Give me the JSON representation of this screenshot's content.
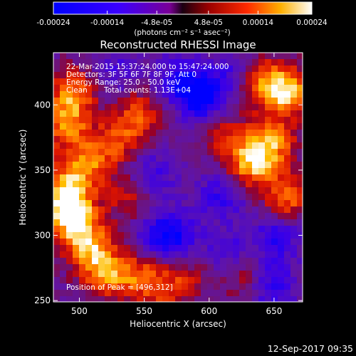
{
  "chart_data": {
    "type": "heatmap",
    "title": "Reconstructed RHESSI Image",
    "xlabel": "Heliocentric X (arcsec)",
    "ylabel": "Heliocentric Y (arcsec)",
    "xlim": [
      480,
      672
    ],
    "ylim": [
      249,
      440
    ],
    "x_ticks": [
      500,
      550,
      600,
      650
    ],
    "y_ticks": [
      250,
      300,
      350,
      400
    ],
    "colorbar": {
      "range": [
        -0.00024,
        0.00024
      ],
      "tick_labels": [
        "-0.00024",
        "-0.00014",
        "-4.8e-05",
        "4.8e-05",
        "0.00014",
        "0.00024"
      ],
      "tick_values": [
        -0.00024,
        -0.00014,
        -4.8e-05,
        4.8e-05,
        0.00014,
        0.00024
      ],
      "units": "(photons cm⁻² s⁻¹ asec⁻²)"
    },
    "annotations": {
      "time": "22-Mar-2015 15:37:24.000 to 15:47:24.000",
      "detectors": "Detectors: 3F 5F 6F 7F 8F 9F, Att 0",
      "energy": "Energy Range: 25.0 - 50.0 keV",
      "method": "Clean",
      "counts": "Total counts: 1.13E+04",
      "peak": "Position of Peak = [496,312]"
    },
    "bright_regions": [
      {
        "x": 496,
        "y": 312,
        "v": 0.00024
      },
      {
        "x": 488,
        "y": 330,
        "v": 0.0002
      },
      {
        "x": 508,
        "y": 290,
        "v": 0.00018
      },
      {
        "x": 520,
        "y": 270,
        "v": 0.00017
      },
      {
        "x": 500,
        "y": 350,
        "v": 0.00016
      },
      {
        "x": 490,
        "y": 385,
        "v": 0.00018
      },
      {
        "x": 495,
        "y": 410,
        "v": 0.00017
      },
      {
        "x": 520,
        "y": 365,
        "v": 0.00012
      },
      {
        "x": 538,
        "y": 380,
        "v": 0.00011
      },
      {
        "x": 548,
        "y": 398,
        "v": 0.0001
      },
      {
        "x": 540,
        "y": 330,
        "v": 0.00012
      },
      {
        "x": 545,
        "y": 270,
        "v": 0.00013
      },
      {
        "x": 562,
        "y": 258,
        "v": 0.0001
      },
      {
        "x": 582,
        "y": 268,
        "v": 9e-05
      },
      {
        "x": 660,
        "y": 410,
        "v": 0.00023
      },
      {
        "x": 640,
        "y": 418,
        "v": 0.00016
      },
      {
        "x": 632,
        "y": 355,
        "v": 0.00022
      },
      {
        "x": 648,
        "y": 372,
        "v": 0.00019
      },
      {
        "x": 660,
        "y": 330,
        "v": 0.00018
      },
      {
        "x": 625,
        "y": 270,
        "v": 0.00011
      },
      {
        "x": 610,
        "y": 380,
        "v": 0.00011
      }
    ],
    "dark_regions": [
      {
        "x": 596,
        "y": 404,
        "v": -0.00022
      },
      {
        "x": 578,
        "y": 420,
        "v": -0.00016
      },
      {
        "x": 575,
        "y": 300,
        "v": -0.00014
      },
      {
        "x": 555,
        "y": 345,
        "v": -0.00013
      },
      {
        "x": 610,
        "y": 330,
        "v": -0.00013
      },
      {
        "x": 615,
        "y": 285,
        "v": -0.00012
      },
      {
        "x": 652,
        "y": 298,
        "v": -0.00014
      },
      {
        "x": 648,
        "y": 262,
        "v": -0.00014
      },
      {
        "x": 560,
        "y": 300,
        "v": -0.00012
      },
      {
        "x": 530,
        "y": 425,
        "v": -9e-05
      },
      {
        "x": 620,
        "y": 425,
        "v": -0.0001
      }
    ]
  },
  "footer": {
    "date": "12-Sep-2017 09:35"
  }
}
